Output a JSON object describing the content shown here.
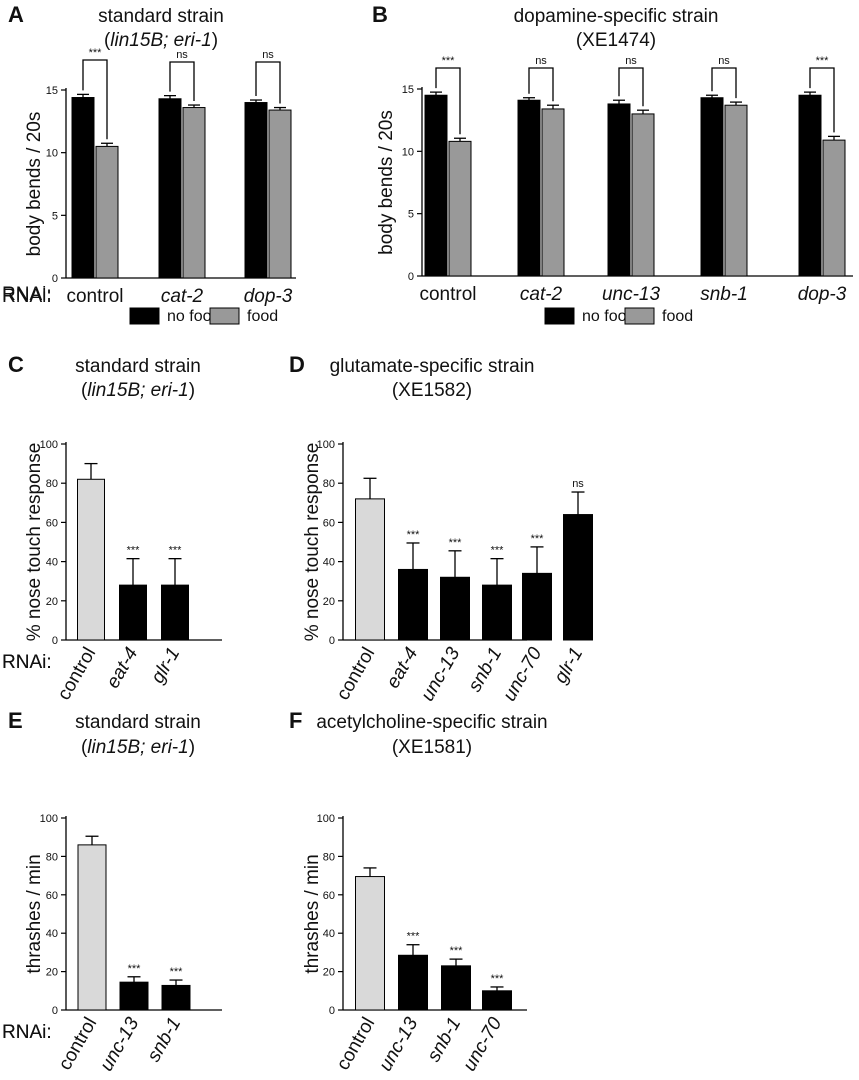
{
  "rnai_label": "RNAi:",
  "chart_data": [
    {
      "panel": "A",
      "type": "bar",
      "title": [
        "standard strain",
        "(lin15B; eri-1)"
      ],
      "ylabel": "body bends / 20s",
      "ylim": [
        0,
        15
      ],
      "yticks": [
        0,
        5,
        10,
        15
      ],
      "categories": [
        "control",
        "cat-2",
        "dop-3"
      ],
      "series": [
        {
          "name": "no food",
          "color": "#000000",
          "values": [
            14.4,
            14.3,
            14.0
          ],
          "errors": [
            0.25,
            0.25,
            0.2
          ]
        },
        {
          "name": "food",
          "color": "#999999",
          "values": [
            10.5,
            13.6,
            13.4
          ],
          "errors": [
            0.25,
            0.2,
            0.2
          ]
        }
      ],
      "significance": [
        "***",
        "ns",
        "ns"
      ],
      "legend": "bottom"
    },
    {
      "panel": "B",
      "type": "bar",
      "title": [
        "dopamine-specific strain",
        "(XE1474)"
      ],
      "ylabel": "body bends / 20s",
      "ylim": [
        0,
        15
      ],
      "yticks": [
        0,
        5,
        10,
        15
      ],
      "categories": [
        "control",
        "cat-2",
        "unc-13",
        "snb-1",
        "dop-3"
      ],
      "series": [
        {
          "name": "no food",
          "color": "#000000",
          "values": [
            14.5,
            14.1,
            13.8,
            14.3,
            14.5
          ],
          "errors": [
            0.25,
            0.2,
            0.3,
            0.2,
            0.25
          ]
        },
        {
          "name": "food",
          "color": "#999999",
          "values": [
            10.8,
            13.4,
            13.0,
            13.7,
            10.9
          ],
          "errors": [
            0.25,
            0.3,
            0.3,
            0.25,
            0.3
          ]
        }
      ],
      "significance": [
        "***",
        "ns",
        "ns",
        "ns",
        "***"
      ],
      "legend": "bottom"
    },
    {
      "panel": "C",
      "type": "bar",
      "title": [
        "standard strain",
        "(lin15B; eri-1)"
      ],
      "ylabel": "% nose touch response",
      "ylim": [
        0,
        100
      ],
      "yticks": [
        0,
        20,
        40,
        60,
        80,
        100
      ],
      "categories": [
        "control",
        "eat-4",
        "glr-1"
      ],
      "values": [
        82,
        28,
        28
      ],
      "errors": [
        8,
        13.5,
        13.5
      ],
      "colors": [
        "#d9d9d9",
        "#000000",
        "#000000"
      ],
      "significance": [
        "",
        "***",
        "***"
      ]
    },
    {
      "panel": "D",
      "type": "bar",
      "title": [
        "glutamate-specific strain",
        "(XE1582)"
      ],
      "ylabel": "% nose touch response",
      "ylim": [
        0,
        100
      ],
      "yticks": [
        0,
        20,
        40,
        60,
        80,
        100
      ],
      "categories": [
        "control",
        "eat-4",
        "unc-13",
        "snb-1",
        "unc-70",
        "glr-1"
      ],
      "values": [
        72,
        36,
        32,
        28,
        34,
        64
      ],
      "errors": [
        10.5,
        13.5,
        13.5,
        13.5,
        13.5,
        11.5
      ],
      "colors": [
        "#d9d9d9",
        "#000000",
        "#000000",
        "#000000",
        "#000000",
        "#000000"
      ],
      "significance": [
        "",
        "***",
        "***",
        "***",
        "***",
        "ns"
      ]
    },
    {
      "panel": "E",
      "type": "bar",
      "title": [
        "standard strain",
        "(lin15B; eri-1)"
      ],
      "ylabel": "thrashes / min",
      "ylim": [
        0,
        100
      ],
      "yticks": [
        0,
        20,
        40,
        60,
        80,
        100
      ],
      "categories": [
        "control",
        "unc-13",
        "snb-1"
      ],
      "values": [
        86,
        14.5,
        12.8
      ],
      "errors": [
        4.5,
        2.8,
        2.8
      ],
      "colors": [
        "#d9d9d9",
        "#000000",
        "#000000"
      ],
      "significance": [
        "",
        "***",
        "***"
      ]
    },
    {
      "panel": "F",
      "type": "bar",
      "title": [
        "acetylcholine-specific strain",
        "(XE1581)"
      ],
      "ylabel": "thrashes / min",
      "ylim": [
        0,
        100
      ],
      "yticks": [
        0,
        20,
        40,
        60,
        80,
        100
      ],
      "categories": [
        "control",
        "unc-13",
        "snb-1",
        "unc-70"
      ],
      "values": [
        69.5,
        28.5,
        23,
        10
      ],
      "errors": [
        4.5,
        5.5,
        3.5,
        2
      ],
      "colors": [
        "#d9d9d9",
        "#000000",
        "#000000",
        "#000000"
      ],
      "significance": [
        "",
        "***",
        "***",
        "***"
      ]
    }
  ]
}
